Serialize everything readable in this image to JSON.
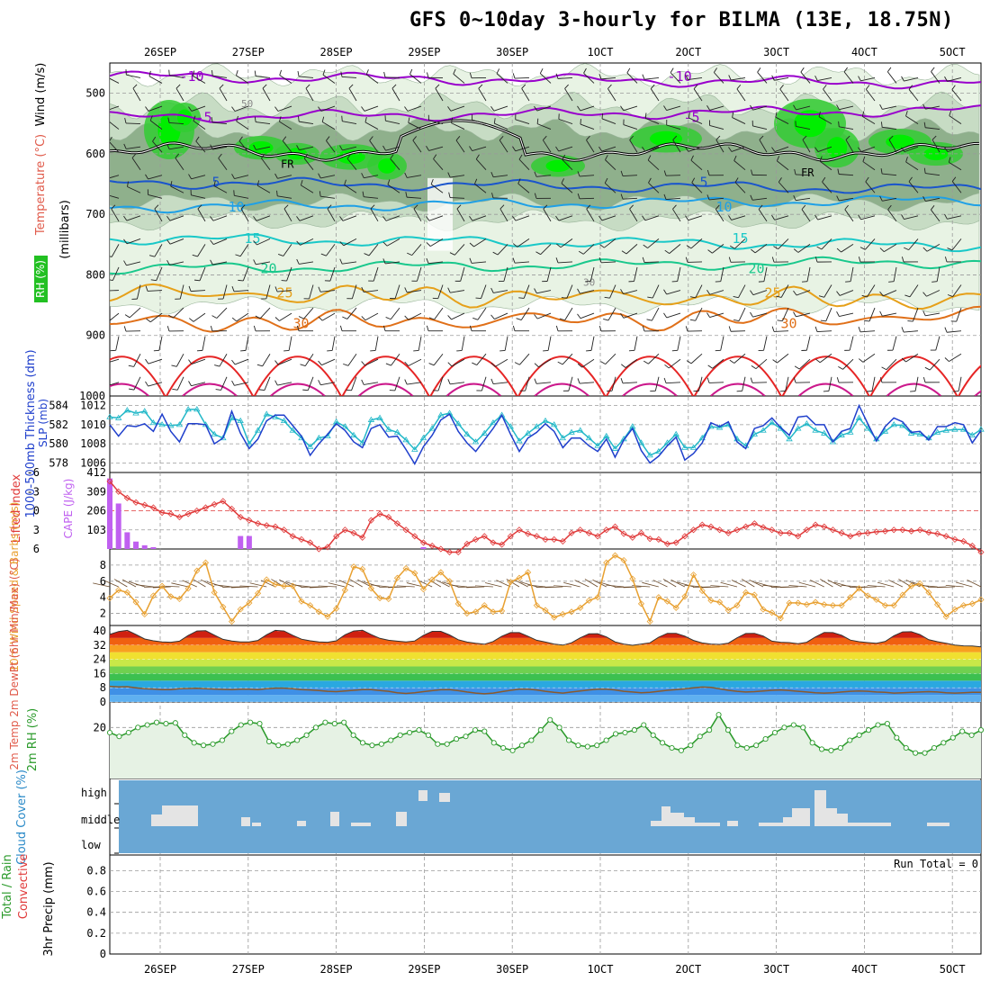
{
  "page": {
    "title": "GFS 0~10day 3-hourly for BILMA (13E, 18.75N)"
  },
  "colors": {
    "rh_light": "#e8f3e4",
    "rh_mid": "#c7dcc4",
    "rh_dark": "#8fb08c",
    "rh_bright": "#33cc33",
    "rh_green": "#00ee00",
    "temp_purple": "#9900cc",
    "temp_blue": "#1a55cc",
    "temp_lightblue": "#1fa0e6",
    "temp_teal": "#19c8c8",
    "temp_green": "#19c88c",
    "temp_orange": "#e6a019",
    "temp_darkorange": "#e07019",
    "temp_red": "#e62525",
    "thickness": "#1f3fcc",
    "slp": "#22b8c8",
    "lifted_index": "#e03a3a",
    "cape": "#c060f0",
    "wind_speed": "#e8a030",
    "rh2m": "#2a9a2a",
    "cloud_bg": "#6aa7d4",
    "cloud_block": "#e4e4e4"
  },
  "chart_data": [
    {
      "type": "contour",
      "panel": "rh-temp-wind",
      "ylabel_parts": [
        "RH (%)",
        "Temperature (°C)",
        "Wind (m/s)"
      ],
      "ylabel_units": "(millibars)",
      "y_ticks": [
        500,
        600,
        700,
        800,
        900,
        1000
      ],
      "ylim": [
        1000,
        450
      ],
      "x_ticks": [
        "26SEP",
        "27SEP",
        "28SEP",
        "29SEP",
        "30SEP",
        "1OCT",
        "2OCT",
        "3OCT",
        "4OCT",
        "5OCT"
      ],
      "freezing_label": "FR",
      "isotherms": [
        {
          "label": "-10",
          "mb": 472
        },
        {
          "label": "-5",
          "mb": 540
        },
        {
          "label": "5",
          "mb": 647
        },
        {
          "label": "10",
          "mb": 688
        },
        {
          "label": "15",
          "mb": 740
        },
        {
          "label": "20",
          "mb": 790
        },
        {
          "label": "25",
          "mb": 830
        },
        {
          "label": "30",
          "mb": 880
        }
      ],
      "rh_labels": [
        "50",
        "30"
      ]
    },
    {
      "type": "line",
      "panel": "thickness-slp",
      "ylabel_left": "1000-500mb Thickness (dm)",
      "ylabel_right": "SLP (mb)",
      "y_ticks_left": [
        578,
        580,
        582,
        584
      ],
      "y_ticks_right": [
        1006,
        1008,
        1010,
        1012
      ],
      "series": [
        {
          "name": "1000-500mb Thickness (dm)",
          "values": [
            582.0,
            580.8,
            581.9,
            581.8,
            582.1,
            581.3,
            583.1,
            581.3,
            580.2,
            582.1,
            582.1,
            582.0,
            580.0,
            580.6,
            583.4,
            581.1,
            579.5,
            580.5,
            582.4,
            583.0,
            583.0,
            581.9,
            580.8,
            578.8,
            580.0,
            581.0,
            582.1,
            581.4,
            580.2,
            579.6,
            581.6,
            582.0,
            580.7,
            580.8,
            579.4,
            577.9,
            579.7,
            580.9,
            582.5,
            583.1,
            581.3,
            580.1,
            579.2,
            580.4,
            581.6,
            583.0,
            581.0,
            579.2,
            580.6,
            581.2,
            582.1,
            581.3,
            579.6,
            580.6,
            580.6,
            579.8,
            579.2,
            580.5,
            578.6,
            580.4,
            581.6,
            579.3,
            578.0,
            578.7,
            579.8,
            580.7,
            578.3,
            579.0,
            580.1,
            582.2,
            581.8,
            582.3,
            580.2,
            579.5,
            581.6,
            581.9,
            582.7,
            581.7,
            580.9,
            582.8,
            582.9,
            582.0,
            582.0,
            580.2,
            581.3,
            581.6,
            584.0,
            582.1,
            580.3,
            581.8,
            582.7,
            582.3,
            581.2,
            581.3,
            580.4,
            581.8,
            581.8,
            582.2,
            582.0,
            580.1,
            581.4
          ]
        },
        {
          "name": "SLP (mb)",
          "values": [
            1010.8,
            1010.7,
            1011.5,
            1011.2,
            1011.4,
            1010.2,
            1010.0,
            1009.9,
            1010.0,
            1011.6,
            1011.6,
            1010.0,
            1009.0,
            1008.6,
            1010.7,
            1010.4,
            1008.0,
            1009.4,
            1011.1,
            1010.8,
            1010.4,
            1009.4,
            1008.6,
            1007.7,
            1008.6,
            1008.8,
            1010.3,
            1009.8,
            1008.9,
            1008.1,
            1010.5,
            1010.7,
            1009.5,
            1009.2,
            1008.4,
            1007.4,
            1008.6,
            1009.6,
            1011.0,
            1011.2,
            1010.1,
            1009.0,
            1008.2,
            1009.1,
            1010.2,
            1011.0,
            1009.8,
            1008.3,
            1009.1,
            1009.8,
            1010.4,
            1010.0,
            1008.6,
            1009.2,
            1009.4,
            1008.6,
            1007.8,
            1008.8,
            1007.5,
            1008.5,
            1009.8,
            1008.1,
            1006.8,
            1007.2,
            1008.1,
            1009.0,
            1007.6,
            1007.6,
            1008.6,
            1009.8,
            1009.7,
            1010.0,
            1008.5,
            1007.8,
            1009.0,
            1009.4,
            1010.2,
            1009.6,
            1008.5,
            1009.6,
            1010.1,
            1009.4,
            1009.1,
            1008.2,
            1008.9,
            1009.2,
            1010.7,
            1009.6,
            1008.5,
            1009.3,
            1010.0,
            1009.9,
            1009.1,
            1009.0,
            1008.6,
            1009.2,
            1009.4,
            1009.5,
            1009.5,
            1008.9,
            1009.5
          ]
        }
      ]
    },
    {
      "type": "bar-line",
      "panel": "lifted-index-cape",
      "ylabel_left": "Lifted Index",
      "ylabel_right": "CAPE (J/kg)",
      "y_ticks_left": [
        -6,
        -3,
        0,
        3,
        6
      ],
      "y_ticks_right": [
        103,
        206,
        309,
        412
      ],
      "series": [
        {
          "name": "Lifted Index",
          "values": [
            -4.6,
            -3.0,
            -2.0,
            -1.3,
            -0.9,
            -0.5,
            0.3,
            0.5,
            1.0,
            0.5,
            0.0,
            -0.5,
            -1.0,
            -1.5,
            -0.3,
            1.0,
            1.5,
            2.0,
            2.3,
            2.5,
            3.0,
            4.0,
            4.5,
            5.0,
            6.0,
            5.7,
            4.0,
            3.0,
            3.5,
            4.2,
            1.5,
            0.5,
            1.0,
            2.0,
            3.0,
            4.0,
            5.0,
            5.5,
            6.0,
            6.5,
            6.5,
            5.2,
            4.5,
            4.0,
            5.0,
            5.3,
            4.0,
            3.0,
            3.6,
            4.0,
            4.5,
            4.5,
            4.8,
            3.5,
            3.0,
            3.5,
            4.0,
            3.0,
            2.5,
            3.6,
            4.2,
            3.5,
            4.4,
            4.5,
            5.2,
            5.0,
            4.0,
            3.0,
            2.2,
            2.5,
            3.0,
            3.5,
            3.0,
            2.5,
            2.0,
            2.6,
            3.0,
            3.5,
            3.5,
            4.0,
            3.0,
            2.2,
            2.5,
            3.0,
            3.5,
            4.0,
            3.6,
            3.5,
            3.3,
            3.2,
            3.0,
            3.0,
            3.2,
            3.0,
            3.4,
            3.6,
            4.0,
            4.5,
            4.8,
            5.5,
            6.5
          ]
        },
        {
          "name": "CAPE (J/kg)",
          "values": [
            380,
            245,
            90,
            40,
            20,
            10,
            0,
            0,
            0,
            0,
            0,
            0,
            0,
            0,
            0,
            70,
            70,
            0,
            0,
            0,
            0,
            0,
            0,
            0,
            0,
            0,
            0,
            0,
            0,
            0,
            0,
            0,
            0,
            0,
            0,
            0,
            10,
            0,
            0,
            0,
            0,
            0,
            0,
            0,
            0,
            0,
            0,
            0,
            0,
            0,
            0,
            0,
            0,
            0,
            0,
            0,
            0,
            0,
            0,
            0,
            0,
            0,
            0,
            0,
            0,
            0,
            0,
            0,
            0,
            0,
            0,
            0,
            0,
            0,
            0,
            0,
            0,
            0,
            0,
            0,
            0,
            0,
            0,
            0,
            0,
            0,
            0,
            0,
            0,
            0,
            0,
            0,
            0,
            0,
            0,
            0,
            0,
            0,
            0,
            0,
            0
          ]
        }
      ]
    },
    {
      "type": "line",
      "panel": "10m-wind",
      "ylabel": "10m Wind Speed & Barbs (m/s)",
      "y_ticks": [
        2,
        4,
        6,
        8
      ],
      "series": [
        {
          "name": "Speed",
          "values": [
            3.9,
            4.9,
            4.6,
            3.4,
            1.9,
            4.2,
            5.4,
            4.1,
            3.8,
            5.1,
            7.3,
            8.3,
            4.6,
            2.8,
            1.0,
            2.5,
            3.3,
            4.5,
            6.2,
            5.6,
            5.4,
            5.4,
            3.5,
            3.0,
            2.2,
            1.6,
            2.6,
            4.9,
            7.8,
            7.5,
            5.1,
            3.9,
            3.8,
            6.4,
            7.6,
            7.0,
            5.0,
            6.2,
            7.1,
            6.0,
            3.2,
            2.0,
            2.2,
            3.0,
            2.2,
            2.3,
            5.9,
            6.4,
            7.1,
            3.0,
            2.4,
            1.5,
            1.9,
            2.2,
            2.7,
            3.6,
            4.0,
            8.3,
            9.2,
            8.6,
            6.3,
            3.2,
            1.0,
            4.0,
            3.5,
            2.7,
            4.1,
            6.8,
            4.8,
            3.6,
            3.4,
            2.4,
            3.0,
            4.6,
            4.3,
            2.5,
            2.1,
            1.4,
            3.3,
            3.3,
            3.1,
            3.4,
            3.1,
            3.0,
            3.0,
            4.0,
            5.1,
            4.2,
            3.7,
            3.0,
            3.0,
            4.3,
            5.4,
            5.7,
            4.6,
            3.1,
            1.6,
            2.5,
            3.0,
            3.2,
            3.7
          ]
        }
      ]
    },
    {
      "type": "area",
      "panel": "2m-temp",
      "ylabel": "2m Temp 2m DewPt (6hr Min/Max) (°C)",
      "y_ticks": [
        0,
        8,
        16,
        24,
        32,
        40
      ],
      "series": [
        {
          "name": "2m Temp",
          "values": [
            38.0,
            39.6,
            40.3,
            38.0,
            35.4,
            34.4,
            33.8,
            33.6,
            34.2,
            37.4,
            39.9,
            40.1,
            37.6,
            35.2,
            34.3,
            33.8,
            33.8,
            34.6,
            37.8,
            40.3,
            39.9,
            37.5,
            35.3,
            34.4,
            33.8,
            33.6,
            34.4,
            37.8,
            39.9,
            40.4,
            37.9,
            35.8,
            34.7,
            34.2,
            33.8,
            34.3,
            37.5,
            39.7,
            39.7,
            37.7,
            35.0,
            33.7,
            33.0,
            32.5,
            34.0,
            37.0,
            39.0,
            39.0,
            37.0,
            34.7,
            33.7,
            32.6,
            32.0,
            33.3,
            36.1,
            38.3,
            38.4,
            36.6,
            33.8,
            32.6,
            31.9,
            32.6,
            33.3,
            36.4,
            38.6,
            38.6,
            37.0,
            34.6,
            33.2,
            32.6,
            32.4,
            33.1,
            36.1,
            38.5,
            38.6,
            37.1,
            34.2,
            33.6,
            33.4,
            32.8,
            33.6,
            36.6,
            39.1,
            39.0,
            37.5,
            34.8,
            33.9,
            33.4,
            33.0,
            34.0,
            37.2,
            39.4,
            39.5,
            37.9,
            35.0,
            33.9,
            33.0,
            32.0,
            31.6,
            31.5,
            31.0
          ]
        },
        {
          "name": "2m DewPt",
          "values": [
            8.8,
            8.5,
            8.6,
            8.0,
            7.5,
            7.3,
            7.0,
            7.0,
            7.5,
            7.6,
            7.7,
            7.5,
            7.3,
            7.1,
            7.0,
            7.2,
            7.2,
            7.0,
            7.5,
            7.8,
            7.8,
            7.5,
            7.0,
            6.8,
            6.5,
            6.0,
            5.8,
            6.2,
            6.6,
            7.0,
            7.0,
            6.5,
            6.0,
            5.2,
            4.8,
            5.2,
            5.8,
            6.4,
            6.9,
            7.0,
            6.4,
            5.6,
            5.0,
            4.6,
            5.0,
            5.8,
            6.6,
            7.2,
            7.2,
            6.8,
            6.0,
            5.4,
            5.0,
            5.6,
            6.2,
            6.8,
            7.2,
            7.2,
            6.8,
            6.0,
            5.6,
            5.2,
            5.4,
            6.0,
            6.6,
            7.0,
            7.4,
            8.0,
            8.4,
            8.2,
            7.4,
            6.6,
            6.0,
            5.6,
            5.8,
            6.2,
            6.6,
            6.8,
            6.5,
            6.0,
            5.6,
            5.2,
            5.0,
            5.2,
            5.6,
            6.0,
            6.2,
            6.0,
            5.6,
            5.4,
            5.0,
            5.2,
            5.4,
            5.6,
            5.8,
            5.6,
            5.2,
            5.0,
            5.2,
            5.4,
            5.4
          ]
        }
      ]
    },
    {
      "type": "area",
      "panel": "2m-rh",
      "ylabel": "2m RH (%)",
      "y_ticks": [
        20
      ],
      "series": [
        {
          "name": "2m RH",
          "values": [
            18.0,
            16.5,
            18.0,
            20.0,
            21.0,
            22.0,
            21.5,
            21.8,
            17.0,
            14.0,
            13.0,
            13.5,
            15.0,
            18.5,
            21.0,
            22.0,
            21.5,
            14.5,
            13.0,
            13.5,
            15.0,
            17.0,
            20.0,
            22.0,
            21.5,
            22.0,
            17.0,
            14.0,
            13.0,
            13.5,
            15.0,
            17.0,
            18.0,
            19.0,
            17.0,
            13.5,
            13.5,
            15.5,
            16.5,
            19.0,
            18.5,
            14.0,
            12.0,
            11.0,
            13.0,
            15.0,
            19.0,
            23.0,
            20.0,
            15.0,
            13.0,
            12.5,
            13.0,
            15.0,
            17.5,
            18.0,
            19.0,
            21.0,
            17.0,
            14.0,
            12.0,
            11.0,
            13.0,
            16.5,
            19.0,
            25.0,
            19.0,
            13.0,
            12.0,
            13.0,
            15.5,
            18.0,
            20.0,
            21.0,
            20.0,
            14.0,
            11.5,
            11.0,
            12.0,
            15.0,
            17.0,
            19.0,
            21.0,
            21.5,
            16.0,
            12.0,
            10.0,
            10.0,
            12.0,
            14.0,
            16.0,
            18.5,
            17.0,
            19.0
          ]
        }
      ]
    },
    {
      "type": "heatmap",
      "panel": "cloud-cover",
      "ylabel": "Cloud Cover (%)",
      "y_ticks": [
        "high",
        "middle",
        "low"
      ]
    },
    {
      "type": "bar",
      "panel": "precip",
      "ylabel_parts": [
        "Total / Rain",
        "Convective",
        "3hr Precip (mm)"
      ],
      "y_ticks": [
        0,
        0.2,
        0.4,
        0.6,
        0.8
      ],
      "ylim": [
        0,
        0.95
      ],
      "run_total_label": "Run Total = 0",
      "values": []
    }
  ]
}
